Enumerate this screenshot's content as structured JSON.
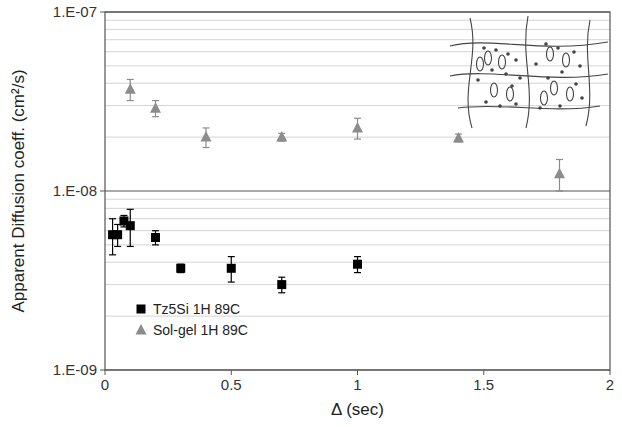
{
  "chart_data": {
    "type": "scatter",
    "x_label": "Δ (sec)",
    "y_label": "Apparent Diffusion coeff. (cm²/s)",
    "log": "y",
    "grid": true,
    "legend": "bottom-left",
    "xlim": [
      0,
      2
    ],
    "xticks": [
      0,
      0.5,
      1,
      1.5,
      2
    ],
    "ylim": [
      1e-09,
      1e-07
    ],
    "yticks": [
      {
        "value": 1e-09,
        "label": "1.E-09"
      },
      {
        "value": 1e-08,
        "label": "1.E-08"
      },
      {
        "value": 1e-07,
        "label": "1.E-07"
      }
    ],
    "series": [
      {
        "name": "Tz5Si 1H 89C",
        "color": "#000000",
        "marker": "square",
        "x": [
          0.03,
          0.05,
          0.075,
          0.1,
          0.2,
          0.3,
          0.5,
          0.7,
          1.0
        ],
        "values": [
          5.7e-09,
          5.7e-09,
          6.8e-09,
          6.4e-09,
          5.5e-09,
          3.7e-09,
          3.7e-09,
          3e-09,
          3.9e-09
        ],
        "errors": [
          1.3e-09,
          8e-10,
          5e-10,
          1.5e-09,
          5e-10,
          2e-10,
          6e-10,
          3e-10,
          4e-10
        ]
      },
      {
        "name": "Sol-gel 1H 89C",
        "color": "#8c8c8c",
        "marker": "triangle",
        "x": [
          0.1,
          0.2,
          0.4,
          0.7,
          1.0,
          1.4,
          1.8
        ],
        "values": [
          3.7e-08,
          2.9e-08,
          2e-08,
          2e-08,
          2.25e-08,
          1.98e-08,
          1.25e-08
        ],
        "errors": [
          5e-09,
          3e-09,
          2.5e-09,
          1e-09,
          3e-09,
          1e-09,
          2.5e-09
        ]
      }
    ]
  }
}
